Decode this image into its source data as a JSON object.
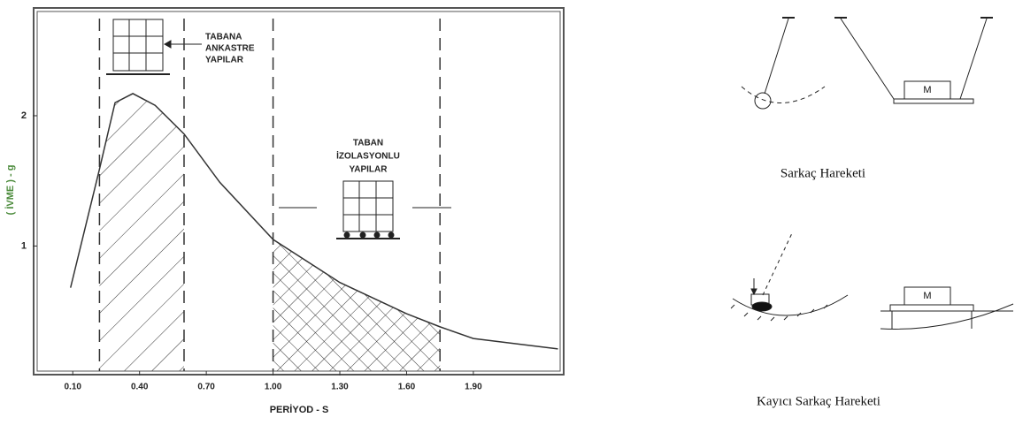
{
  "chart_data": {
    "type": "line",
    "x": [
      0.09,
      0.22,
      0.29,
      0.37,
      0.47,
      0.6,
      0.76,
      1.0,
      1.3,
      1.6,
      1.75,
      1.9,
      2.28
    ],
    "values": [
      0.68,
      1.59,
      2.1,
      2.17,
      2.08,
      1.86,
      1.49,
      1.05,
      0.72,
      0.48,
      0.38,
      0.29,
      0.21
    ],
    "color": "#333333",
    "xlim": [
      -0.06,
      2.29
    ],
    "ylim": [
      0.04,
      2.8
    ],
    "xticks": [
      {
        "value": 0.1,
        "label": "0.10"
      },
      {
        "value": 0.4,
        "label": "0.40"
      },
      {
        "value": 0.7,
        "label": "0.70"
      },
      {
        "value": 1.0,
        "label": "1.00"
      },
      {
        "value": 1.3,
        "label": "1.30"
      },
      {
        "value": 1.6,
        "label": "1.60"
      },
      {
        "value": 1.9,
        "label": "1.90"
      }
    ],
    "yticks": [
      1,
      2
    ],
    "xlabel": "PERİYOD - S",
    "ylabel": "( İVME ) - g",
    "bands": [
      {
        "from": 0.22,
        "to": 0.6
      },
      {
        "from": 1.0,
        "to": 1.75
      }
    ],
    "annotations": [
      [
        "TABANA",
        "ANKASTRE",
        "YAPILAR"
      ],
      [
        "TABAN",
        "İZOLASYONLU",
        "YAPILAR"
      ]
    ]
  },
  "diagram": {
    "pendulum_caption": "Sarkaç Hareketi",
    "sliding_caption": "Kayıcı Sarkaç Hareketi",
    "mass_label_1": "M",
    "mass_label_2": "M"
  }
}
